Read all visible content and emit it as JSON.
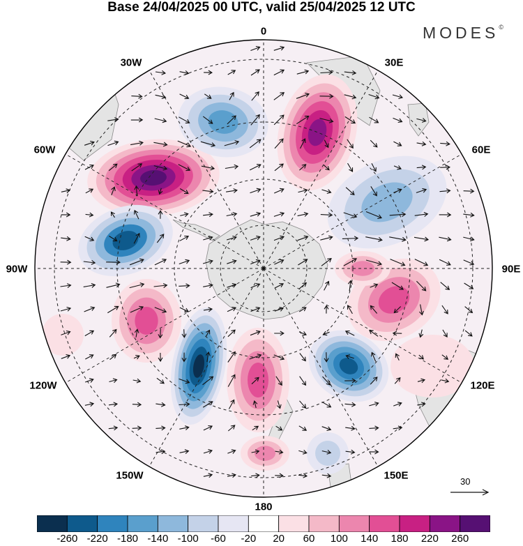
{
  "title": "Base 24/04/2025 00 UTC, valid 25/04/2025 12 UTC",
  "brand": "MODES",
  "brand_mark": "©",
  "longitude_labels": {
    "north": "0",
    "n30e": "30E",
    "n60e": "60E",
    "east": "90E",
    "s120e": "120E",
    "s150e": "150E",
    "south": "180",
    "s150w": "150W",
    "s120w": "120W",
    "west": "90W",
    "n60w": "60W",
    "n30w": "30W"
  },
  "vector_scale_label": "30",
  "colorbar": {
    "labels": [
      "-260",
      "-220",
      "-180",
      "-140",
      "-100",
      "-60",
      "-20",
      "20",
      "60",
      "100",
      "140",
      "180",
      "220",
      "260"
    ],
    "colors": [
      "#0b2f4f",
      "#0e5a8c",
      "#2f84bd",
      "#5a9fcd",
      "#8eb8dc",
      "#c4d2e8",
      "#e6e6f3",
      "#ffffff",
      "#fbe0e5",
      "#f4b9c8",
      "#ec86ae",
      "#e24f95",
      "#c82083",
      "#8a1486",
      "#561073"
    ]
  },
  "colors": {
    "land": "#e3e3e3",
    "coast": "#888888",
    "grid": "#222222"
  }
}
